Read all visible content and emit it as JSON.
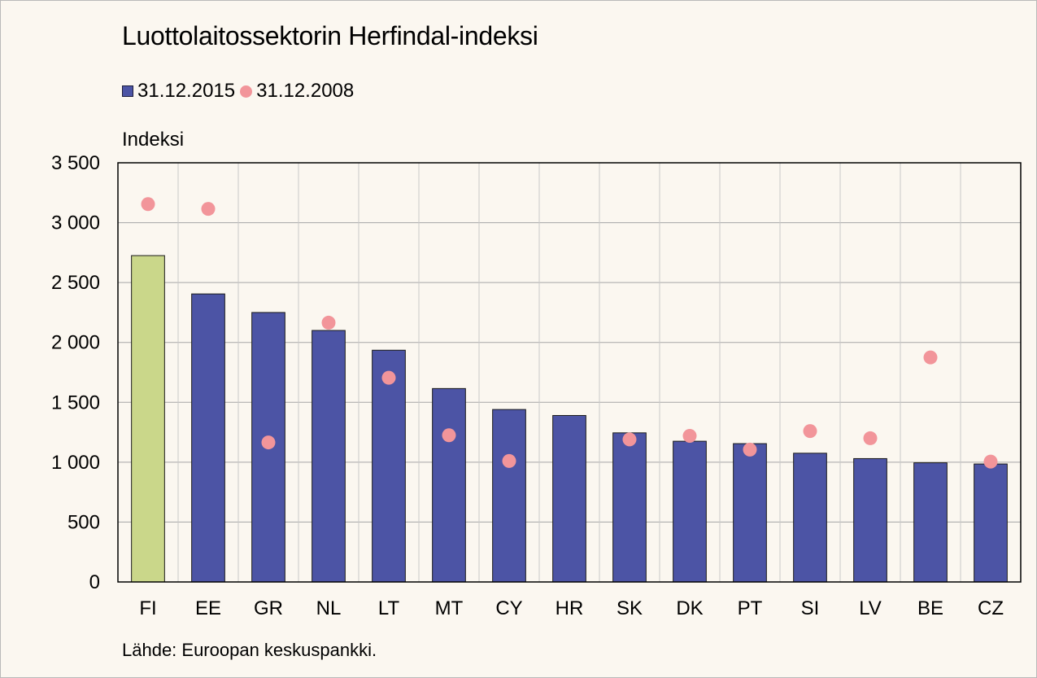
{
  "chart_data": {
    "type": "bar",
    "title": "Luottolaitossektorin Herfindal-indeksi",
    "ylabel": "Indeksi",
    "xlabel": "",
    "ylim": [
      0,
      3500
    ],
    "yticks": [
      0,
      500,
      1000,
      1500,
      2000,
      2500,
      3000,
      3500
    ],
    "ytick_labels": [
      "0",
      "500",
      "1 000",
      "1 500",
      "2 000",
      "2 500",
      "3 000",
      "3 500"
    ],
    "categories": [
      "FI",
      "EE",
      "GR",
      "NL",
      "LT",
      "MT",
      "CY",
      "HR",
      "SK",
      "DK",
      "PT",
      "SI",
      "LV",
      "BE",
      "CZ"
    ],
    "series": [
      {
        "name": "31.12.2015",
        "kind": "bar",
        "color": "#4c54a5",
        "highlight_color": "#cad78a",
        "highlight_category": "FI",
        "values": [
          2725,
          2405,
          2250,
          2100,
          1935,
          1615,
          1440,
          1390,
          1245,
          1175,
          1155,
          1075,
          1030,
          995,
          985
        ]
      },
      {
        "name": "31.12.2008",
        "kind": "scatter",
        "color": "#f2959a",
        "values": [
          3155,
          3115,
          1165,
          2165,
          1705,
          1225,
          1010,
          null,
          1190,
          1220,
          1105,
          1260,
          1200,
          1875,
          1005
        ]
      }
    ],
    "grid": true,
    "legend_position": "top-left",
    "source": "Lähde: Euroopan keskuspankki."
  }
}
